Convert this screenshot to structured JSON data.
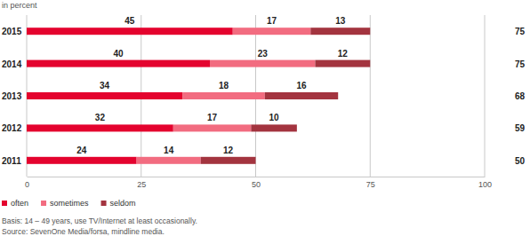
{
  "chart_data": {
    "type": "bar",
    "subtitle": "in percent",
    "orientation": "horizontal",
    "stacked": true,
    "data_labels": true,
    "grid": true,
    "legend": "bottom-left",
    "categories": [
      "2015",
      "2014",
      "2013",
      "2012",
      "2011"
    ],
    "series": [
      {
        "name": "often",
        "color": "#e4032e",
        "values": [
          45,
          40,
          34,
          32,
          24
        ]
      },
      {
        "name": "sometimes",
        "color": "#f26c80",
        "values": [
          17,
          23,
          18,
          17,
          14
        ]
      },
      {
        "name": "seldom",
        "color": "#a3343f",
        "values": [
          13,
          12,
          16,
          10,
          12
        ]
      }
    ],
    "totals": [
      75,
      75,
      68,
      59,
      50
    ],
    "xlim": [
      0,
      100
    ],
    "xticks": [
      0,
      25,
      50,
      75,
      100
    ],
    "notes": [
      "Basis: 14 – 49 years, use TV/Internet at least occasionally.",
      "Source: SevenOne Media/forsa, mindline media."
    ]
  }
}
